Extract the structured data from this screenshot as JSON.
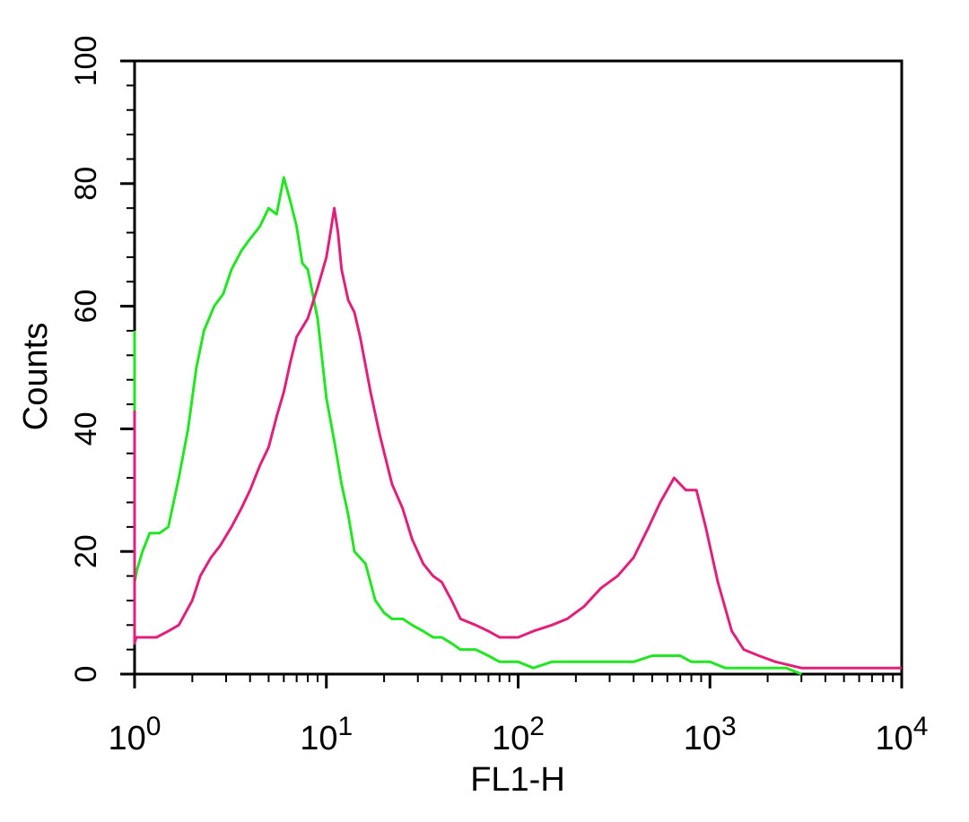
{
  "chart_data": {
    "type": "line",
    "title": "",
    "xlabel": "FL1-H",
    "ylabel": "Counts",
    "xscale": "log",
    "xlim": [
      1,
      10000
    ],
    "ylim": [
      0,
      100
    ],
    "grid": false,
    "x_ticks": [
      {
        "base": "10",
        "exp": "0"
      },
      {
        "base": "10",
        "exp": "1"
      },
      {
        "base": "10",
        "exp": "2"
      },
      {
        "base": "10",
        "exp": "3"
      },
      {
        "base": "10",
        "exp": "4"
      }
    ],
    "y_ticks": [
      "0",
      "20",
      "40",
      "60",
      "80",
      "100"
    ],
    "series": [
      {
        "color": "#22e622",
        "x": [
          1.0,
          1.0,
          1.03,
          1.1,
          1.2,
          1.35,
          1.5,
          1.7,
          1.9,
          2.1,
          2.3,
          2.6,
          2.9,
          3.2,
          3.6,
          4.0,
          4.5,
          5.0,
          5.5,
          6.0,
          6.5,
          7.0,
          7.5,
          8.0,
          9.0,
          10.0,
          11.0,
          12.0,
          13.0,
          14.0,
          16.0,
          18.0,
          20.0,
          22.0,
          25.0,
          28.0,
          32.0,
          36.0,
          40.0,
          45.0,
          50.0,
          60.0,
          70.0,
          80.0,
          100.0,
          120.0,
          150.0,
          200.0,
          300.0,
          400.0,
          500.0,
          600.0,
          700.0,
          800.0,
          1000.0,
          1200.0,
          1500.0,
          2000.0,
          2500.0,
          3000.0
        ],
        "y": [
          56,
          15,
          17,
          20,
          23,
          23,
          24,
          32,
          40,
          50,
          56,
          60,
          62,
          66,
          69,
          71,
          73,
          76,
          75,
          81,
          77,
          73,
          67,
          66,
          58,
          45,
          38,
          31,
          26,
          20,
          18,
          12,
          10,
          9,
          9,
          8,
          7,
          6,
          6,
          5,
          4,
          4,
          3,
          2,
          2,
          1,
          2,
          2,
          2,
          2,
          3,
          3,
          3,
          2,
          2,
          1,
          1,
          1,
          1,
          0
        ]
      },
      {
        "color": "#e0207a",
        "x": [
          1.0,
          1.0,
          1.02,
          1.1,
          1.3,
          1.5,
          1.7,
          2.0,
          2.2,
          2.5,
          2.8,
          3.2,
          3.6,
          4.0,
          4.5,
          5.0,
          5.5,
          6.0,
          6.5,
          7.0,
          8.0,
          9.0,
          10.0,
          10.5,
          11.0,
          11.5,
          12.0,
          13.0,
          14.0,
          15.0,
          17.0,
          19.0,
          22.0,
          25.0,
          28.0,
          32.0,
          36.0,
          40.0,
          45.0,
          50.0,
          60.0,
          70.0,
          80.0,
          100.0,
          120.0,
          150.0,
          180.0,
          220.0,
          270.0,
          330.0,
          400.0,
          480.0,
          550.0,
          650.0,
          750.0,
          850.0,
          950.0,
          1100.0,
          1300.0,
          1500.0,
          1800.0,
          2200.0,
          3000.0,
          5000.0,
          10000.0
        ],
        "y": [
          43,
          5,
          6,
          6,
          6,
          7,
          8,
          12,
          16,
          19,
          21,
          24,
          27,
          30,
          34,
          37,
          42,
          46,
          51,
          55,
          58,
          63,
          68,
          72,
          76,
          72,
          66,
          61,
          59,
          55,
          46,
          39,
          31,
          27,
          22,
          18,
          16,
          15,
          12,
          9,
          8,
          7,
          6,
          6,
          7,
          8,
          9,
          11,
          14,
          16,
          19,
          24,
          28,
          32,
          30,
          30,
          24,
          15,
          7,
          4,
          3,
          2,
          1,
          1,
          1
        ]
      }
    ]
  }
}
